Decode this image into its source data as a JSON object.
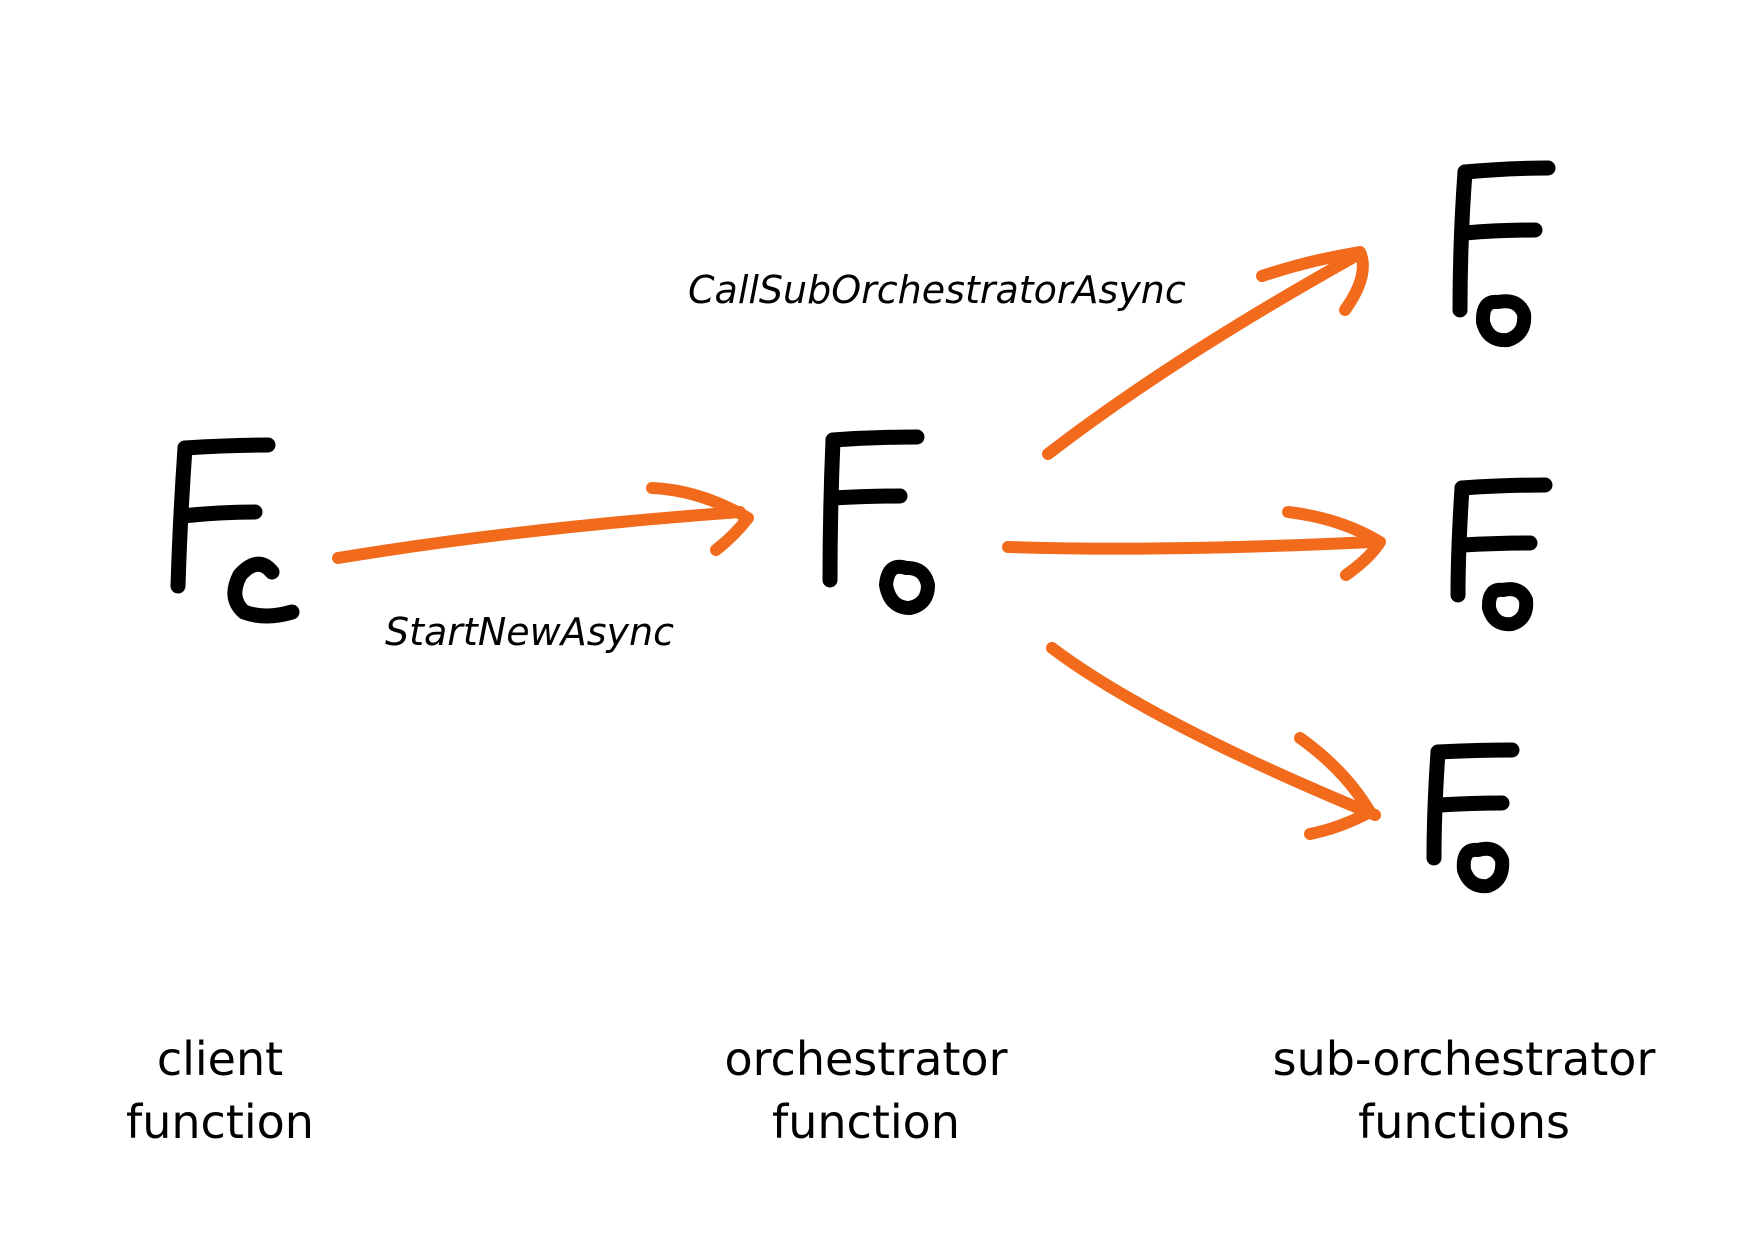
{
  "colors": {
    "background": "#ffffff",
    "ink": "#000000",
    "arrow": "#f26a1b"
  },
  "nodes": {
    "client": {
      "letter": "F",
      "subscript": "c"
    },
    "orchestrator": {
      "letter": "F",
      "subscript": "o"
    },
    "sub_orchestrators": [
      {
        "letter": "F",
        "subscript": "o"
      },
      {
        "letter": "F",
        "subscript": "o"
      },
      {
        "letter": "F",
        "subscript": "o"
      }
    ]
  },
  "edges": {
    "start_new": {
      "label": "StartNewAsync"
    },
    "call_sub": {
      "label": "CallSubOrchestratorAsync"
    }
  },
  "captions": {
    "client": {
      "line1": "client",
      "line2": "function"
    },
    "orchestrator": {
      "line1": "orchestrator",
      "line2": "function"
    },
    "sub": {
      "line1": "sub-orchestrator",
      "line2": "functions"
    }
  }
}
